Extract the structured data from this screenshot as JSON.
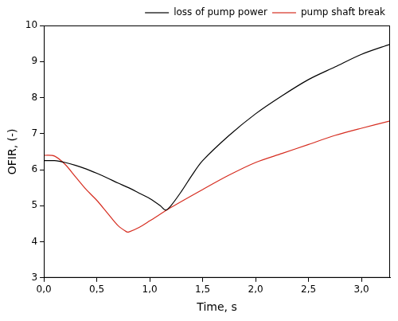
{
  "chart_data": {
    "type": "line",
    "x_label": "Time, s",
    "y_label": "OFIR, (-)",
    "xlim": [
      0,
      3.27
    ],
    "ylim": [
      3,
      10
    ],
    "xticks": [
      {
        "value": 0,
        "label": "0,0"
      },
      {
        "value": 0.5,
        "label": "0,5"
      },
      {
        "value": 1,
        "label": "1,0"
      },
      {
        "value": 1.5,
        "label": "1,5"
      },
      {
        "value": 2,
        "label": "2,0"
      },
      {
        "value": 2.5,
        "label": "2,5"
      },
      {
        "value": 3,
        "label": "3,0"
      }
    ],
    "yticks": [
      3,
      4,
      5,
      6,
      7,
      8,
      9,
      10
    ],
    "grid": false,
    "legend": "upper right",
    "series": [
      {
        "name": "loss of pump power",
        "color": "#000000",
        "x": [
          0,
          0.1,
          0.2,
          0.3,
          0.4,
          0.5,
          0.6,
          0.7,
          0.8,
          0.9,
          1.0,
          1.1,
          1.15,
          1.2,
          1.3,
          1.4,
          1.5,
          1.75,
          2.0,
          2.25,
          2.5,
          2.75,
          3.0,
          3.27
        ],
        "values": [
          6.25,
          6.25,
          6.2,
          6.12,
          6.02,
          5.9,
          5.77,
          5.63,
          5.5,
          5.35,
          5.2,
          5.0,
          4.88,
          5.0,
          5.4,
          5.85,
          6.25,
          6.95,
          7.55,
          8.05,
          8.5,
          8.85,
          9.2,
          9.48
        ]
      },
      {
        "name": "pump shaft break",
        "color": "#d62d20",
        "x": [
          0,
          0.1,
          0.2,
          0.3,
          0.4,
          0.5,
          0.6,
          0.7,
          0.78,
          0.8,
          0.9,
          1.0,
          1.2,
          1.5,
          1.75,
          2.0,
          2.25,
          2.5,
          2.75,
          3.0,
          3.27
        ],
        "values": [
          6.4,
          6.38,
          6.15,
          5.8,
          5.45,
          5.15,
          4.8,
          4.45,
          4.28,
          4.27,
          4.4,
          4.58,
          4.95,
          5.45,
          5.85,
          6.2,
          6.45,
          6.7,
          6.95,
          7.15,
          7.35
        ]
      }
    ]
  }
}
